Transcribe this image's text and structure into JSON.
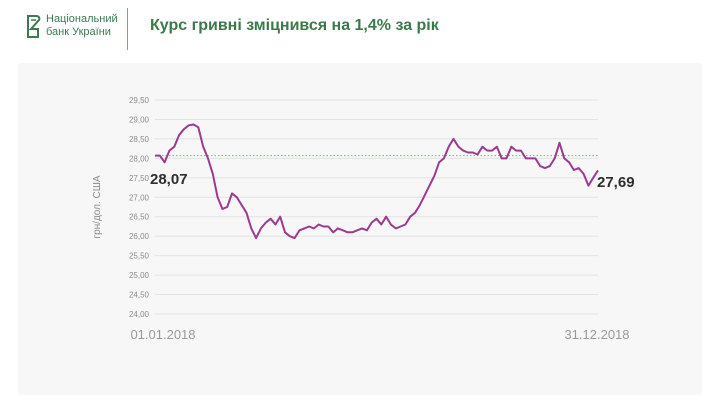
{
  "header": {
    "bank_line1": "Національний",
    "bank_line2": "банк України",
    "title": "Курс гривні зміцнився на 1,4% за рік"
  },
  "colors": {
    "brand": "#3d7a52",
    "series": "#9b3a8e",
    "reference_line": "#7fb27f"
  },
  "chart_data": {
    "type": "line",
    "title": "",
    "xlabel": "",
    "ylabel": "грн/дол. США",
    "ylim": [
      24.0,
      29.5
    ],
    "yticks": [
      "24,00",
      "24,50",
      "25,00",
      "25,50",
      "26,00",
      "26,50",
      "27,00",
      "27,50",
      "28,00",
      "28,50",
      "29,00",
      "29,50"
    ],
    "x_labels": [
      "01.01.2018",
      "31.12.2018"
    ],
    "start_label": "28,07",
    "end_label": "27,69",
    "reference_value": 28.07,
    "grid": true,
    "series": [
      {
        "values": [
          28.07,
          28.07,
          27.9,
          28.2,
          28.3,
          28.6,
          28.75,
          28.85,
          28.87,
          28.8,
          28.3,
          28.0,
          27.6,
          27.0,
          26.7,
          26.75,
          27.1,
          27.0,
          26.8,
          26.6,
          26.2,
          25.95,
          26.2,
          26.35,
          26.45,
          26.3,
          26.5,
          26.1,
          26.0,
          25.95,
          26.15,
          26.2,
          26.25,
          26.2,
          26.3,
          26.25,
          26.25,
          26.1,
          26.2,
          26.15,
          26.1,
          26.1,
          26.15,
          26.2,
          26.15,
          26.35,
          26.45,
          26.3,
          26.5,
          26.3,
          26.2,
          26.25,
          26.3,
          26.5,
          26.6,
          26.8,
          27.05,
          27.3,
          27.55,
          27.9,
          28.0,
          28.3,
          28.5,
          28.3,
          28.2,
          28.15,
          28.15,
          28.1,
          28.3,
          28.2,
          28.2,
          28.3,
          28.0,
          28.0,
          28.3,
          28.2,
          28.2,
          28.0,
          28.0,
          28.0,
          27.8,
          27.75,
          27.8,
          28.0,
          28.4,
          28.0,
          27.9,
          27.7,
          27.75,
          27.6,
          27.3,
          27.5,
          27.69
        ]
      }
    ]
  }
}
